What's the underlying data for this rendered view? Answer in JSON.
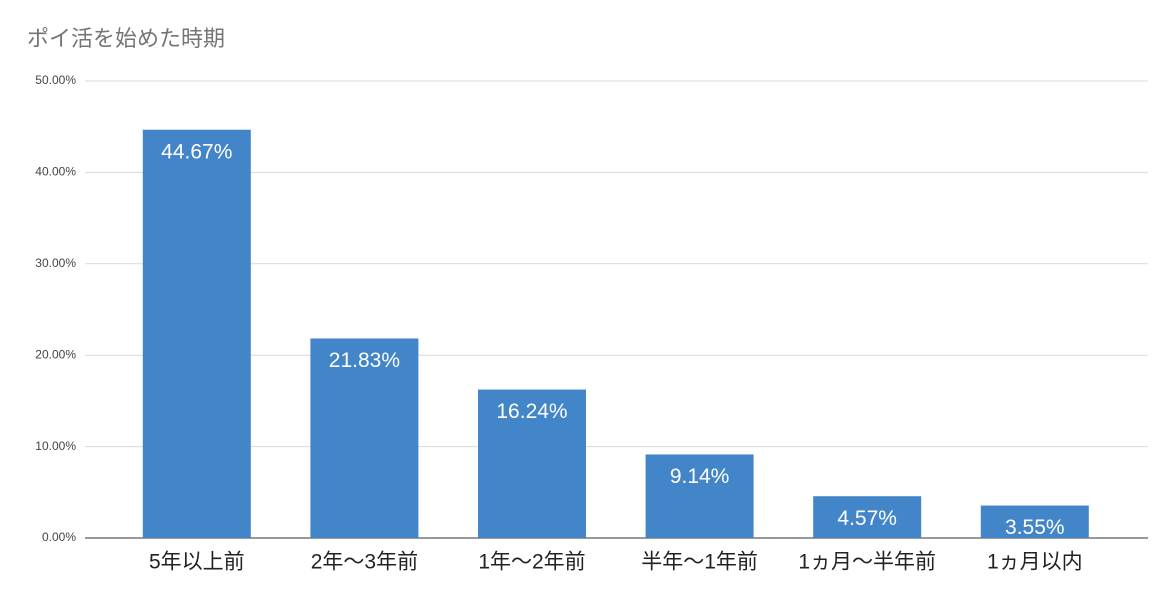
{
  "chart_data": {
    "type": "bar",
    "title": "ポイ活を始めた時期",
    "categories": [
      "5年以上前",
      "2年〜3年前",
      "1年〜2年前",
      "半年〜1年前",
      "1ヵ月〜半年前",
      "1ヵ月以内"
    ],
    "values": [
      44.67,
      21.83,
      16.24,
      9.14,
      4.57,
      3.55
    ],
    "value_labels": [
      "44.67%",
      "21.83%",
      "16.24%",
      "9.14%",
      "4.57%",
      "3.55%"
    ],
    "color": "#4285c8",
    "ylim": [
      0,
      50
    ],
    "yticks": [
      {
        "value": 0,
        "label": "0.00%"
      },
      {
        "value": 10,
        "label": "10.00%"
      },
      {
        "value": 20,
        "label": "20.00%"
      },
      {
        "value": 30,
        "label": "30.00%"
      },
      {
        "value": 40,
        "label": "40.00%"
      },
      {
        "value": 50,
        "label": "50.00%"
      }
    ],
    "grid": true
  }
}
